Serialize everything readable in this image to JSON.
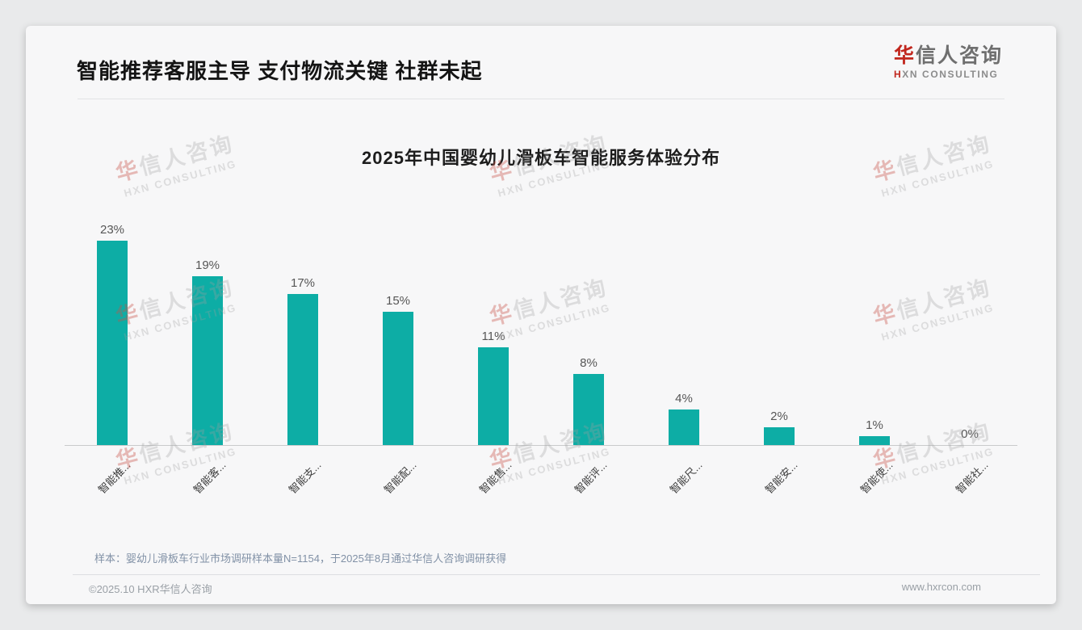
{
  "page": {
    "title": "智能推荐客服主导 支付物流关键 社群未起",
    "note": "样本：婴幼儿滑板车行业市场调研样本量N=1154，于2025年8月通过华信人咨询调研获得",
    "footer_left": "©2025.10 HXR华信人咨询",
    "footer_right": "www.hxrcon.com"
  },
  "logo": {
    "name_accent": "华",
    "name_rest": "信人咨询",
    "sub_accent": "H",
    "sub_rest": "XN CONSULTING"
  },
  "watermark": {
    "line1_accent": "华",
    "line1_rest": "信人咨询",
    "line2": "HXN CONSULTING"
  },
  "chart_data": {
    "type": "bar",
    "title": "2025年中国婴幼儿滑板车智能服务体验分布",
    "categories": [
      "智能推...",
      "智能客...",
      "智能支...",
      "智能配...",
      "智能售...",
      "智能评...",
      "智能尺...",
      "智能安...",
      "智能使...",
      "智能社..."
    ],
    "values": [
      23,
      19,
      17,
      15,
      11,
      8,
      4,
      2,
      1,
      0
    ],
    "value_labels": [
      "23%",
      "19%",
      "17%",
      "15%",
      "11%",
      "8%",
      "4%",
      "2%",
      "1%",
      "0%"
    ],
    "unit": "%",
    "bar_color": "#0dada5",
    "xlabel": "",
    "ylabel": "",
    "ylim": [
      0,
      25
    ],
    "grid": false,
    "legend": false,
    "x_label_rotation": 45
  }
}
